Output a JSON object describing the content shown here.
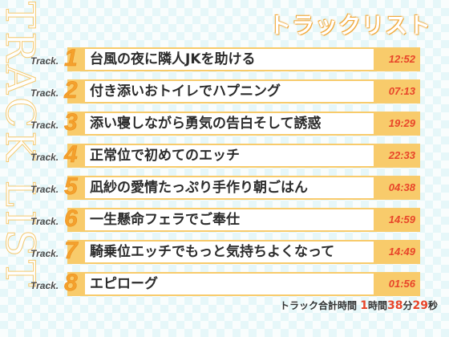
{
  "vertical_title": "TRACK LIST",
  "header_title": "トラックリスト",
  "track_prefix": "Track.",
  "tracks": [
    {
      "number": "1",
      "title": "台風の夜に隣人JKを助ける",
      "duration": "12:52"
    },
    {
      "number": "2",
      "title": "付き添いおトイレでハプニング",
      "duration": "07:13"
    },
    {
      "number": "3",
      "title": "添い寝しながら勇気の告白そして誘惑",
      "duration": "19:29"
    },
    {
      "number": "4",
      "title": "正常位で初めてのエッチ",
      "duration": "22:33"
    },
    {
      "number": "5",
      "title": "凪紗の愛情たっぷり手作り朝ごはん",
      "duration": "04:38"
    },
    {
      "number": "6",
      "title": "一生懸命フェラでご奉仕",
      "duration": "14:59"
    },
    {
      "number": "7",
      "title": "騎乗位エッチでもっと気持ちよくなって",
      "duration": "14:49"
    },
    {
      "number": "8",
      "title": "エピローグ",
      "duration": "01:56"
    }
  ],
  "total": {
    "label": "トラック合計時間",
    "hours": "1",
    "hours_unit": "時間",
    "minutes": "38",
    "minutes_unit": "分",
    "seconds": "29",
    "seconds_unit": "秒"
  },
  "colors": {
    "bar": "#f8cb6b",
    "number": "#f4a12d",
    "duration": "#e8452a",
    "background": "#e6f7f9"
  }
}
